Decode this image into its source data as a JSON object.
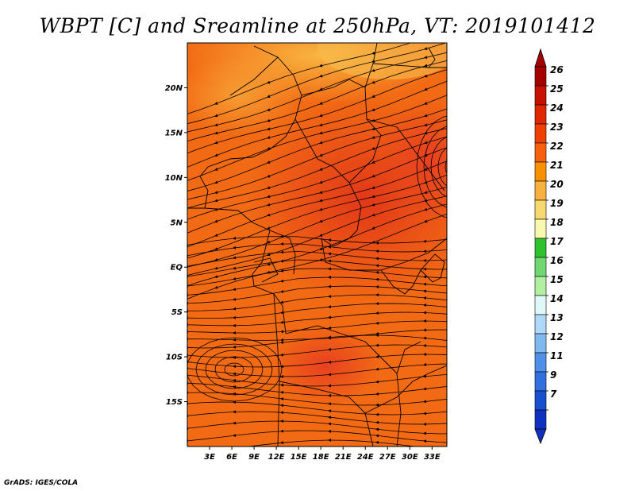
{
  "title": "WBPT [C] and Sreamline at 250hPa, VT: 2019101412",
  "credit": "GrADS: IGES/COLA",
  "lat_ticks": [
    {
      "label": "20N",
      "lat": 20
    },
    {
      "label": "15N",
      "lat": 15
    },
    {
      "label": "10N",
      "lat": 10
    },
    {
      "label": "5N",
      "lat": 5
    },
    {
      "label": "EQ",
      "lat": 0
    },
    {
      "label": "5S",
      "lat": -5
    },
    {
      "label": "10S",
      "lat": -10
    },
    {
      "label": "15S",
      "lat": -15
    }
  ],
  "lon_ticks": [
    {
      "label": "3E",
      "lon": 3
    },
    {
      "label": "6E",
      "lon": 6
    },
    {
      "label": "9E",
      "lon": 9
    },
    {
      "label": "12E",
      "lon": 12
    },
    {
      "label": "15E",
      "lon": 15
    },
    {
      "label": "18E",
      "lon": 18
    },
    {
      "label": "21E",
      "lon": 21
    },
    {
      "label": "24E",
      "lon": 24
    },
    {
      "label": "27E",
      "lon": 27
    },
    {
      "label": "30E",
      "lon": 30
    },
    {
      "label": "33E",
      "lon": 33
    }
  ],
  "extent": {
    "lon_min": 0,
    "lon_max": 35,
    "lat_min": -20,
    "lat_max": 25
  },
  "colorbar": {
    "labels": [
      "26",
      "25",
      "24",
      "23",
      "22",
      "21",
      "20",
      "19",
      "18",
      "17",
      "16",
      "15",
      "14",
      "13",
      "12",
      "11",
      "9",
      "7"
    ],
    "colors": [
      "#a50000",
      "#c81000",
      "#e02800",
      "#f04000",
      "#f86010",
      "#f89000",
      "#f8b040",
      "#f8d870",
      "#f8f8b0",
      "#30c030",
      "#70d870",
      "#b0f0a0",
      "#e0f8f8",
      "#b0d8f8",
      "#80b8f0",
      "#5090e8",
      "#3070e0",
      "#1850d0",
      "#1030c0"
    ],
    "top_arrow_color": "#a50000",
    "bottom_arrow_color": "#1030c0"
  },
  "field_colors": {
    "base": "#f26a14",
    "hot": "#e8481a",
    "warm": "#f8a23a",
    "cool": "#f8c050"
  }
}
